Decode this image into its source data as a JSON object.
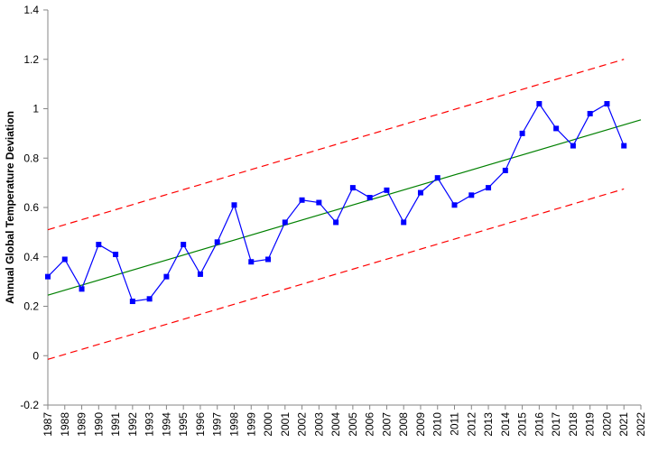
{
  "chart_data": {
    "type": "line",
    "title": "",
    "xlabel": "",
    "ylabel": "Annual Global Temperature Deviation",
    "xlim": [
      1987,
      2022
    ],
    "ylim": [
      -0.2,
      1.4
    ],
    "yticks": [
      "-0.2",
      "0",
      "0.2",
      "0.4",
      "0.6",
      "0.8",
      "1",
      "1.2",
      "1.4"
    ],
    "xticks": [
      "1987",
      "1988",
      "1989",
      "1990",
      "1991",
      "1992",
      "1993",
      "1994",
      "1995",
      "1996",
      "1997",
      "1998",
      "1999",
      "2000",
      "2001",
      "2002",
      "2003",
      "2004",
      "2005",
      "2006",
      "2007",
      "2008",
      "2009",
      "2010",
      "2011",
      "2012",
      "2013",
      "2014",
      "2015",
      "2016",
      "2017",
      "2018",
      "2019",
      "2020",
      "2021",
      "2022"
    ],
    "grid": false,
    "legend": "none",
    "series": [
      {
        "kind": "data",
        "color": "#0000ff",
        "marker": "square",
        "x": [
          1987,
          1988,
          1989,
          1990,
          1991,
          1992,
          1993,
          1994,
          1995,
          1996,
          1997,
          1998,
          1999,
          2000,
          2001,
          2002,
          2003,
          2004,
          2005,
          2006,
          2007,
          2008,
          2009,
          2010,
          2011,
          2012,
          2013,
          2014,
          2015,
          2016,
          2017,
          2018,
          2019,
          2020,
          2021
        ],
        "y": [
          0.32,
          0.39,
          0.27,
          0.45,
          0.41,
          0.22,
          0.23,
          0.32,
          0.45,
          0.33,
          0.46,
          0.61,
          0.38,
          0.39,
          0.54,
          0.63,
          0.62,
          0.54,
          0.68,
          0.64,
          0.67,
          0.54,
          0.66,
          0.72,
          0.61,
          0.65,
          0.68,
          0.75,
          0.9,
          1.02,
          0.92,
          0.85,
          0.98,
          1.02,
          0.85
        ]
      },
      {
        "kind": "trend",
        "color": "#008000",
        "dash": "solid",
        "x": [
          1987,
          2022
        ],
        "y": [
          0.245,
          0.955
        ]
      },
      {
        "kind": "upper-limit",
        "color": "#ff0000",
        "dash": "dashed",
        "x": [
          1987,
          2021
        ],
        "y": [
          0.51,
          1.2
        ]
      },
      {
        "kind": "lower-limit",
        "color": "#ff0000",
        "dash": "dashed",
        "x": [
          1987,
          2021
        ],
        "y": [
          -0.015,
          0.675
        ]
      }
    ]
  }
}
